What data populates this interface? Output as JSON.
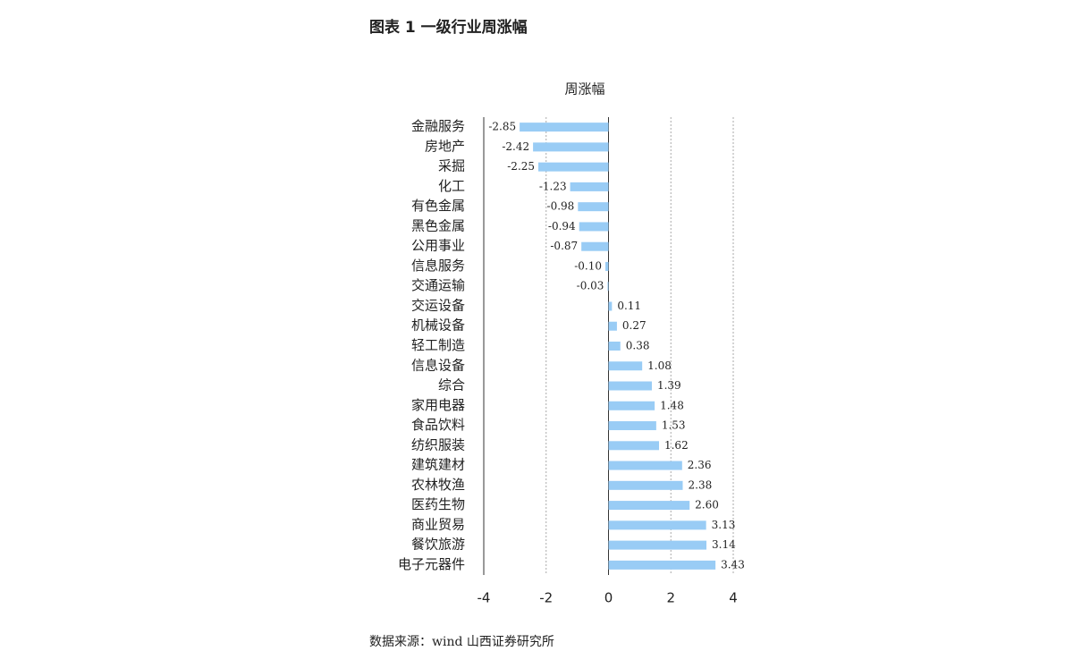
{
  "header": {
    "title": "图表 1 一级行业周涨幅"
  },
  "chart_data": {
    "type": "bar",
    "orientation": "horizontal",
    "title": "周涨幅",
    "categories": [
      "金融服务",
      "房地产",
      "采掘",
      "化工",
      "有色金属",
      "黑色金属",
      "公用事业",
      "信息服务",
      "交通运输",
      "交运设备",
      "机械设备",
      "轻工制造",
      "信息设备",
      "综合",
      "家用电器",
      "食品饮料",
      "纺织服装",
      "建筑建材",
      "农林牧渔",
      "医药生物",
      "商业贸易",
      "餐饮旅游",
      "电子元器件"
    ],
    "values": [
      -2.85,
      -2.42,
      -2.25,
      -1.23,
      -0.98,
      -0.94,
      -0.87,
      -0.1,
      -0.03,
      0.11,
      0.27,
      0.38,
      1.08,
      1.39,
      1.48,
      1.53,
      1.62,
      2.36,
      2.38,
      2.6,
      3.13,
      3.14,
      3.43
    ],
    "value_labels": [
      "-2.85",
      "-2.42",
      "-2.25",
      "-1.23",
      "-0.98",
      "-0.94",
      "-0.87",
      "-0.10",
      "-0.03",
      "0.11",
      "0.27",
      "0.38",
      "1.08",
      "1.39",
      "1.48",
      "1.53",
      "1.62",
      "2.36",
      "2.38",
      "2.60",
      "3.13",
      "3.14",
      "3.43"
    ],
    "color": "#99ccf5",
    "xlim": [
      -4,
      4
    ],
    "xticks": [
      -4,
      -2,
      0,
      2,
      4
    ],
    "grid": true
  },
  "source": "数据来源：wind 山西证券研究所"
}
